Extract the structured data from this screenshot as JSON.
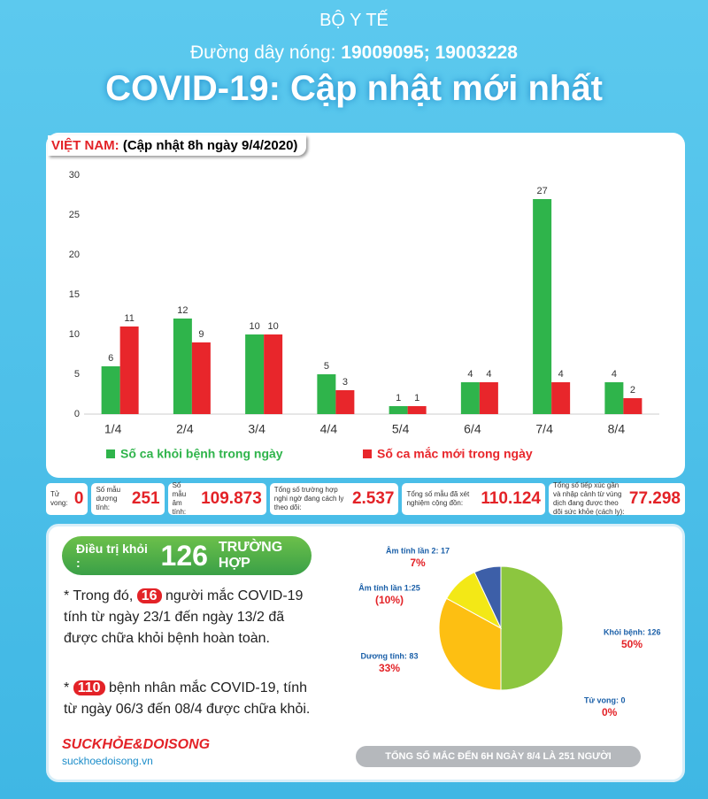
{
  "header": {
    "ministry": "BỘ Y TẾ",
    "hotline_label": "Đường dây nóng:",
    "hotline_numbers": "19009095; 19003228",
    "title": "COVID-19: Cập nhật mới nhất"
  },
  "country": {
    "label": "VIỆT NAM:",
    "update": "(Cập nhật 8h ngày 9/4/2020)"
  },
  "chart_data": [
    {
      "type": "bar",
      "categories": [
        "1/4",
        "2/4",
        "3/4",
        "4/4",
        "5/4",
        "6/4",
        "7/4",
        "8/4"
      ],
      "series": [
        {
          "name": "Số ca khỏi bệnh trong ngày",
          "color": "#2fb44b",
          "values": [
            6,
            12,
            10,
            5,
            1,
            4,
            27,
            4
          ]
        },
        {
          "name": "Số ca mắc mới trong ngày",
          "color": "#e8262b",
          "values": [
            11,
            9,
            10,
            3,
            1,
            4,
            4,
            2
          ]
        }
      ],
      "ylim": [
        0,
        30
      ],
      "yticks": [
        0,
        5,
        10,
        15,
        20,
        25,
        30
      ],
      "grid": false
    },
    {
      "type": "pie",
      "categories": [
        "Khỏi bệnh: 126",
        "Tử vong: 0",
        "Dương tính: 83",
        "Âm tính lần 1:25",
        "Âm tính lần 2: 17"
      ],
      "values": [
        50,
        0,
        33,
        10,
        7
      ],
      "value_labels": [
        "50%",
        "0%",
        "33%",
        "(10%)",
        "7%"
      ],
      "colors": [
        "#8cc63f",
        "#e8262b",
        "#fdbf12",
        "#f3e816",
        "#3d5fa8"
      ]
    }
  ],
  "stats": [
    {
      "label": "Tử vong:",
      "value": "0"
    },
    {
      "label": "Số mẫu dương tính:",
      "value": "251"
    },
    {
      "label": "Số mẫu âm tính:",
      "value": "109.873"
    },
    {
      "label": "Tổng số trường hợp nghi ngờ đang cách ly theo dõi:",
      "value": "2.537"
    },
    {
      "label": "Tổng số mẫu đã xét nghiệm cộng đồn:",
      "value": "110.124"
    },
    {
      "label": "Tổng số tiếp xúc gần và nhập cảnh từ vùng dịch đang được theo dõi sức khỏe (cách ly):",
      "value": "77.298"
    }
  ],
  "recovered": {
    "label": "Điều trị khỏi :",
    "number": "126",
    "unit": "TRƯỜNG HỢP"
  },
  "notes": [
    {
      "prefix": "* Trong đó,",
      "highlight": "16",
      "text": "người mắc COVID-19 tính từ ngày 23/1 đến ngày 13/2 đã được chữa khỏi bệnh hoàn toàn."
    },
    {
      "prefix": "*",
      "highlight": "110",
      "text": "bệnh nhân  mắc COVID-19, tính từ ngày 06/3 đến 08/4 được chữa khỏi."
    }
  ],
  "footer": {
    "brand": "SUCKHỎE&DOISONG",
    "site": "suckhoedoisong.vn",
    "total": "TỔNG SỐ MẮC ĐẾN 6H NGÀY 8/4 LÀ 251 NGƯỜI"
  }
}
